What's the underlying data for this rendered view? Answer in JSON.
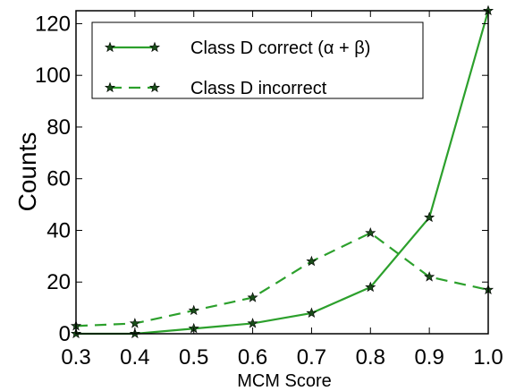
{
  "chart_data": {
    "type": "line",
    "title": "",
    "xlabel": "MCM Score",
    "ylabel": "Counts",
    "xlim": [
      0.3,
      1.0
    ],
    "ylim": [
      0,
      125
    ],
    "x_ticks": [
      "0.3",
      "0.4",
      "0.5",
      "0.6",
      "0.7",
      "0.8",
      "0.9",
      "1.0"
    ],
    "y_ticks": [
      "0",
      "20",
      "40",
      "60",
      "80",
      "100",
      "120"
    ],
    "grid": false,
    "legend_position": "top-left",
    "series": [
      {
        "name": "Class D correct (α + β)",
        "style": "solid",
        "marker": "star",
        "color": "#2ca02c",
        "x": [
          0.3,
          0.4,
          0.5,
          0.6,
          0.7,
          0.8,
          0.9,
          1.0
        ],
        "y": [
          0,
          0,
          2,
          4,
          8,
          18,
          45,
          125
        ]
      },
      {
        "name": "Class D incorrect",
        "style": "dashed",
        "marker": "star",
        "color": "#2ca02c",
        "x": [
          0.3,
          0.4,
          0.5,
          0.6,
          0.7,
          0.8,
          0.9,
          1.0
        ],
        "y": [
          3,
          4,
          9,
          14,
          28,
          39,
          22,
          17
        ]
      }
    ]
  }
}
